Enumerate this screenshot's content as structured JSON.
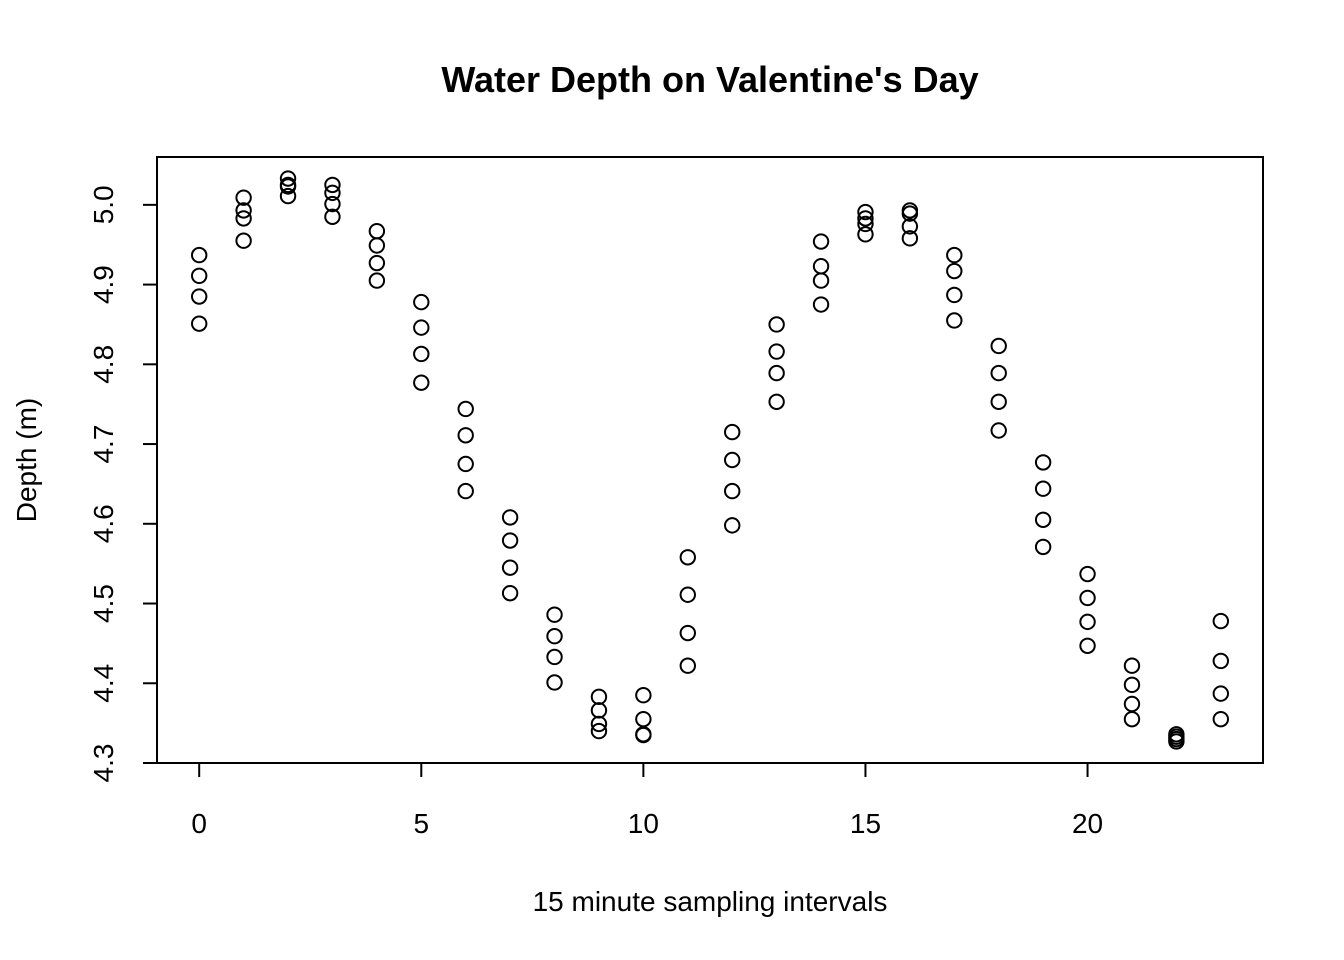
{
  "chart_data": {
    "type": "scatter",
    "title": "Water Depth on Valentine's Day",
    "xlabel": "15 minute sampling intervals",
    "ylabel": "Depth (m)",
    "xlim": [
      -0.95,
      23.95
    ],
    "ylim": [
      4.3,
      5.06
    ],
    "x_ticks": [
      0,
      5,
      10,
      15,
      20
    ],
    "x_tick_labels": [
      "0",
      "5",
      "10",
      "15",
      "20"
    ],
    "y_ticks": [
      4.3,
      4.4,
      4.5,
      4.6,
      4.7,
      4.8,
      4.9,
      5.0
    ],
    "y_tick_labels": [
      "4.3",
      "4.4",
      "4.5",
      "4.6",
      "4.7",
      "4.8",
      "4.9",
      "5.0"
    ],
    "grid": false,
    "marker": "open-circle",
    "color": "#000000",
    "points": [
      [
        0,
        4.937
      ],
      [
        0,
        4.911
      ],
      [
        0,
        4.885
      ],
      [
        0,
        4.851
      ],
      [
        1,
        5.009
      ],
      [
        1,
        4.993
      ],
      [
        1,
        4.983
      ],
      [
        1,
        4.955
      ],
      [
        2,
        5.033
      ],
      [
        2,
        5.025
      ],
      [
        2,
        5.023
      ],
      [
        2,
        5.011
      ],
      [
        3,
        5.025
      ],
      [
        3,
        5.015
      ],
      [
        3,
        5.001
      ],
      [
        3,
        4.985
      ],
      [
        4,
        4.967
      ],
      [
        4,
        4.949
      ],
      [
        4,
        4.927
      ],
      [
        4,
        4.905
      ],
      [
        5,
        4.878
      ],
      [
        5,
        4.846
      ],
      [
        5,
        4.813
      ],
      [
        5,
        4.777
      ],
      [
        6,
        4.744
      ],
      [
        6,
        4.711
      ],
      [
        6,
        4.675
      ],
      [
        6,
        4.641
      ],
      [
        7,
        4.608
      ],
      [
        7,
        4.579
      ],
      [
        7,
        4.545
      ],
      [
        7,
        4.513
      ],
      [
        8,
        4.486
      ],
      [
        8,
        4.459
      ],
      [
        8,
        4.433
      ],
      [
        8,
        4.401
      ],
      [
        9,
        4.383
      ],
      [
        9,
        4.366
      ],
      [
        9,
        4.349
      ],
      [
        9,
        4.34
      ],
      [
        10,
        4.385
      ],
      [
        10,
        4.355
      ],
      [
        10,
        4.336
      ],
      [
        10,
        4.335
      ],
      [
        11,
        4.558
      ],
      [
        11,
        4.511
      ],
      [
        11,
        4.463
      ],
      [
        11,
        4.422
      ],
      [
        12,
        4.715
      ],
      [
        12,
        4.68
      ],
      [
        12,
        4.641
      ],
      [
        12,
        4.598
      ],
      [
        13,
        4.85
      ],
      [
        13,
        4.816
      ],
      [
        13,
        4.789
      ],
      [
        13,
        4.753
      ],
      [
        14,
        4.954
      ],
      [
        14,
        4.923
      ],
      [
        14,
        4.905
      ],
      [
        14,
        4.875
      ],
      [
        15,
        4.991
      ],
      [
        15,
        4.983
      ],
      [
        15,
        4.976
      ],
      [
        15,
        4.963
      ],
      [
        16,
        4.993
      ],
      [
        16,
        4.989
      ],
      [
        16,
        4.973
      ],
      [
        16,
        4.958
      ],
      [
        17,
        4.937
      ],
      [
        17,
        4.917
      ],
      [
        17,
        4.887
      ],
      [
        17,
        4.855
      ],
      [
        18,
        4.823
      ],
      [
        18,
        4.789
      ],
      [
        18,
        4.753
      ],
      [
        18,
        4.717
      ],
      [
        19,
        4.677
      ],
      [
        19,
        4.644
      ],
      [
        19,
        4.605
      ],
      [
        19,
        4.571
      ],
      [
        20,
        4.537
      ],
      [
        20,
        4.507
      ],
      [
        20,
        4.477
      ],
      [
        20,
        4.447
      ],
      [
        21,
        4.422
      ],
      [
        21,
        4.398
      ],
      [
        21,
        4.374
      ],
      [
        21,
        4.355
      ],
      [
        22,
        4.336
      ],
      [
        22,
        4.333
      ],
      [
        22,
        4.33
      ],
      [
        22,
        4.327
      ],
      [
        23,
        4.478
      ],
      [
        23,
        4.428
      ],
      [
        23,
        4.387
      ],
      [
        23,
        4.355
      ]
    ]
  }
}
